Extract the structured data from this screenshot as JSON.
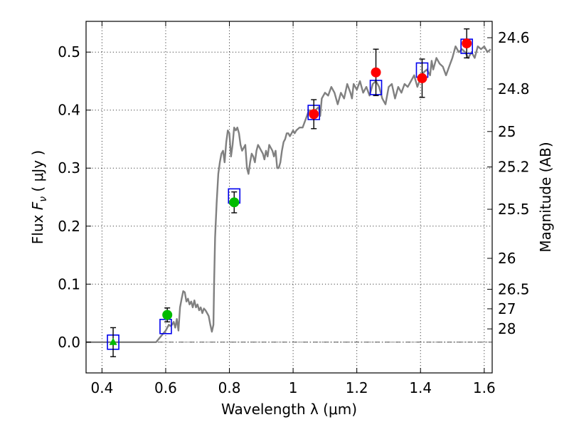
{
  "chart_data": {
    "type": "scatter",
    "xlabel": "Wavelength  λ (μm)",
    "ylabel": "Flux  F_ν  ( μJy )",
    "y2label": "Magnitude (AB)",
    "xlim": [
      0.35,
      1.625
    ],
    "ylim": [
      -0.053,
      0.553
    ],
    "x_ticks": [
      0.4,
      0.6,
      0.8,
      1.0,
      1.2,
      1.4,
      1.6
    ],
    "x_tick_labels": [
      "0.4",
      "0.6",
      "0.8",
      "1",
      "1.2",
      "1.4",
      "1.6"
    ],
    "y_ticks": [
      0.0,
      0.1,
      0.2,
      0.3,
      0.4,
      0.5
    ],
    "y_tick_labels": [
      "0.0",
      "0.1",
      "0.2",
      "0.3",
      "0.4",
      "0.5"
    ],
    "y2_ticks": [
      {
        "label": "24.6",
        "flux": 0.5248
      },
      {
        "label": "24.8",
        "flux": 0.4365
      },
      {
        "label": "25",
        "flux": 0.3631
      },
      {
        "label": "25.2",
        "flux": 0.302
      },
      {
        "label": "25.5",
        "flux": 0.2291
      },
      {
        "label": "26",
        "flux": 0.1445
      },
      {
        "label": "26.5",
        "flux": 0.0912
      },
      {
        "label": "27",
        "flux": 0.0575
      },
      {
        "label": "28",
        "flux": 0.0229
      }
    ],
    "grid": true,
    "colors": {
      "template": "#808080",
      "model_box": "#0000ee",
      "obs_red": "#ff0000",
      "obs_green": "#00bb00",
      "zero_line": "#555555",
      "error_bar": "#000000"
    },
    "series": [
      {
        "kind": "line",
        "x": [
          0.35,
          0.4,
          0.45,
          0.5,
          0.55,
          0.57,
          0.585,
          0.6,
          0.605,
          0.61,
          0.615,
          0.62,
          0.625,
          0.63,
          0.635,
          0.64,
          0.645,
          0.65,
          0.655,
          0.66,
          0.665,
          0.67,
          0.675,
          0.68,
          0.685,
          0.69,
          0.695,
          0.7,
          0.705,
          0.71,
          0.715,
          0.72,
          0.725,
          0.73,
          0.735,
          0.74,
          0.745,
          0.75,
          0.752,
          0.755,
          0.76,
          0.765,
          0.77,
          0.775,
          0.78,
          0.785,
          0.79,
          0.795,
          0.8,
          0.805,
          0.81,
          0.815,
          0.82,
          0.825,
          0.83,
          0.835,
          0.84,
          0.845,
          0.85,
          0.855,
          0.86,
          0.865,
          0.87,
          0.875,
          0.88,
          0.885,
          0.89,
          0.895,
          0.9,
          0.905,
          0.91,
          0.915,
          0.92,
          0.925,
          0.93,
          0.935,
          0.94,
          0.945,
          0.95,
          0.955,
          0.96,
          0.965,
          0.97,
          0.975,
          0.98,
          0.985,
          0.99,
          0.995,
          1.0,
          1.005,
          1.01,
          1.02,
          1.03,
          1.04,
          1.05,
          1.06,
          1.07,
          1.08,
          1.085,
          1.09,
          1.1,
          1.11,
          1.12,
          1.13,
          1.14,
          1.15,
          1.16,
          1.17,
          1.18,
          1.185,
          1.19,
          1.2,
          1.21,
          1.22,
          1.23,
          1.24,
          1.25,
          1.26,
          1.27,
          1.28,
          1.29,
          1.3,
          1.31,
          1.32,
          1.33,
          1.34,
          1.35,
          1.36,
          1.37,
          1.38,
          1.39,
          1.4,
          1.41,
          1.42,
          1.43,
          1.435,
          1.44,
          1.45,
          1.46,
          1.47,
          1.48,
          1.49,
          1.5,
          1.51,
          1.52,
          1.53,
          1.54,
          1.55,
          1.56,
          1.57,
          1.58,
          1.59,
          1.6,
          1.61,
          1.62
        ],
        "y": [
          0.0,
          0.0,
          0.0,
          0.0,
          0.0,
          0.0,
          0.01,
          0.02,
          0.025,
          0.03,
          0.028,
          0.03,
          0.035,
          0.025,
          0.04,
          0.02,
          0.06,
          0.075,
          0.088,
          0.086,
          0.07,
          0.075,
          0.065,
          0.07,
          0.06,
          0.072,
          0.06,
          0.065,
          0.055,
          0.06,
          0.05,
          0.058,
          0.055,
          0.05,
          0.045,
          0.03,
          0.018,
          0.03,
          0.1,
          0.18,
          0.24,
          0.29,
          0.31,
          0.325,
          0.33,
          0.31,
          0.345,
          0.365,
          0.36,
          0.32,
          0.34,
          0.37,
          0.365,
          0.37,
          0.36,
          0.34,
          0.33,
          0.335,
          0.34,
          0.3,
          0.29,
          0.31,
          0.325,
          0.32,
          0.31,
          0.33,
          0.34,
          0.335,
          0.33,
          0.325,
          0.315,
          0.33,
          0.32,
          0.34,
          0.335,
          0.33,
          0.32,
          0.33,
          0.3,
          0.3,
          0.31,
          0.33,
          0.345,
          0.35,
          0.36,
          0.36,
          0.355,
          0.36,
          0.365,
          0.36,
          0.365,
          0.37,
          0.37,
          0.385,
          0.4,
          0.395,
          0.4,
          0.405,
          0.39,
          0.42,
          0.43,
          0.425,
          0.44,
          0.43,
          0.41,
          0.43,
          0.42,
          0.445,
          0.43,
          0.42,
          0.445,
          0.435,
          0.45,
          0.43,
          0.44,
          0.425,
          0.445,
          0.45,
          0.44,
          0.42,
          0.41,
          0.44,
          0.445,
          0.42,
          0.44,
          0.43,
          0.445,
          0.44,
          0.45,
          0.46,
          0.44,
          0.455,
          0.465,
          0.47,
          0.46,
          0.485,
          0.47,
          0.49,
          0.48,
          0.475,
          0.46,
          0.475,
          0.49,
          0.51,
          0.5,
          0.505,
          0.5,
          0.49,
          0.5,
          0.49,
          0.51,
          0.505,
          0.51,
          0.5,
          0.505
        ]
      },
      {
        "kind": "model_boxes",
        "x": [
          0.435,
          0.6,
          0.815,
          1.065,
          1.26,
          1.405,
          1.545
        ],
        "y": [
          0.0,
          0.027,
          0.252,
          0.396,
          0.439,
          0.469,
          0.51
        ]
      },
      {
        "kind": "observed",
        "points": [
          {
            "x": 0.435,
            "y": 0.0,
            "err": 0.025,
            "marker": "triangle",
            "color": "green"
          },
          {
            "x": 0.605,
            "y": 0.047,
            "err": 0.012,
            "marker": "circle",
            "color": "green"
          },
          {
            "x": 0.815,
            "y": 0.241,
            "err": 0.018,
            "marker": "circle",
            "color": "green"
          },
          {
            "x": 1.065,
            "y": 0.393,
            "err": 0.025,
            "marker": "circle",
            "color": "red"
          },
          {
            "x": 1.26,
            "y": 0.465,
            "err": 0.04,
            "marker": "circle",
            "color": "red"
          },
          {
            "x": 1.405,
            "y": 0.455,
            "err": 0.033,
            "marker": "circle",
            "color": "red"
          },
          {
            "x": 1.545,
            "y": 0.515,
            "err": 0.025,
            "marker": "circle",
            "color": "red"
          }
        ]
      }
    ]
  }
}
